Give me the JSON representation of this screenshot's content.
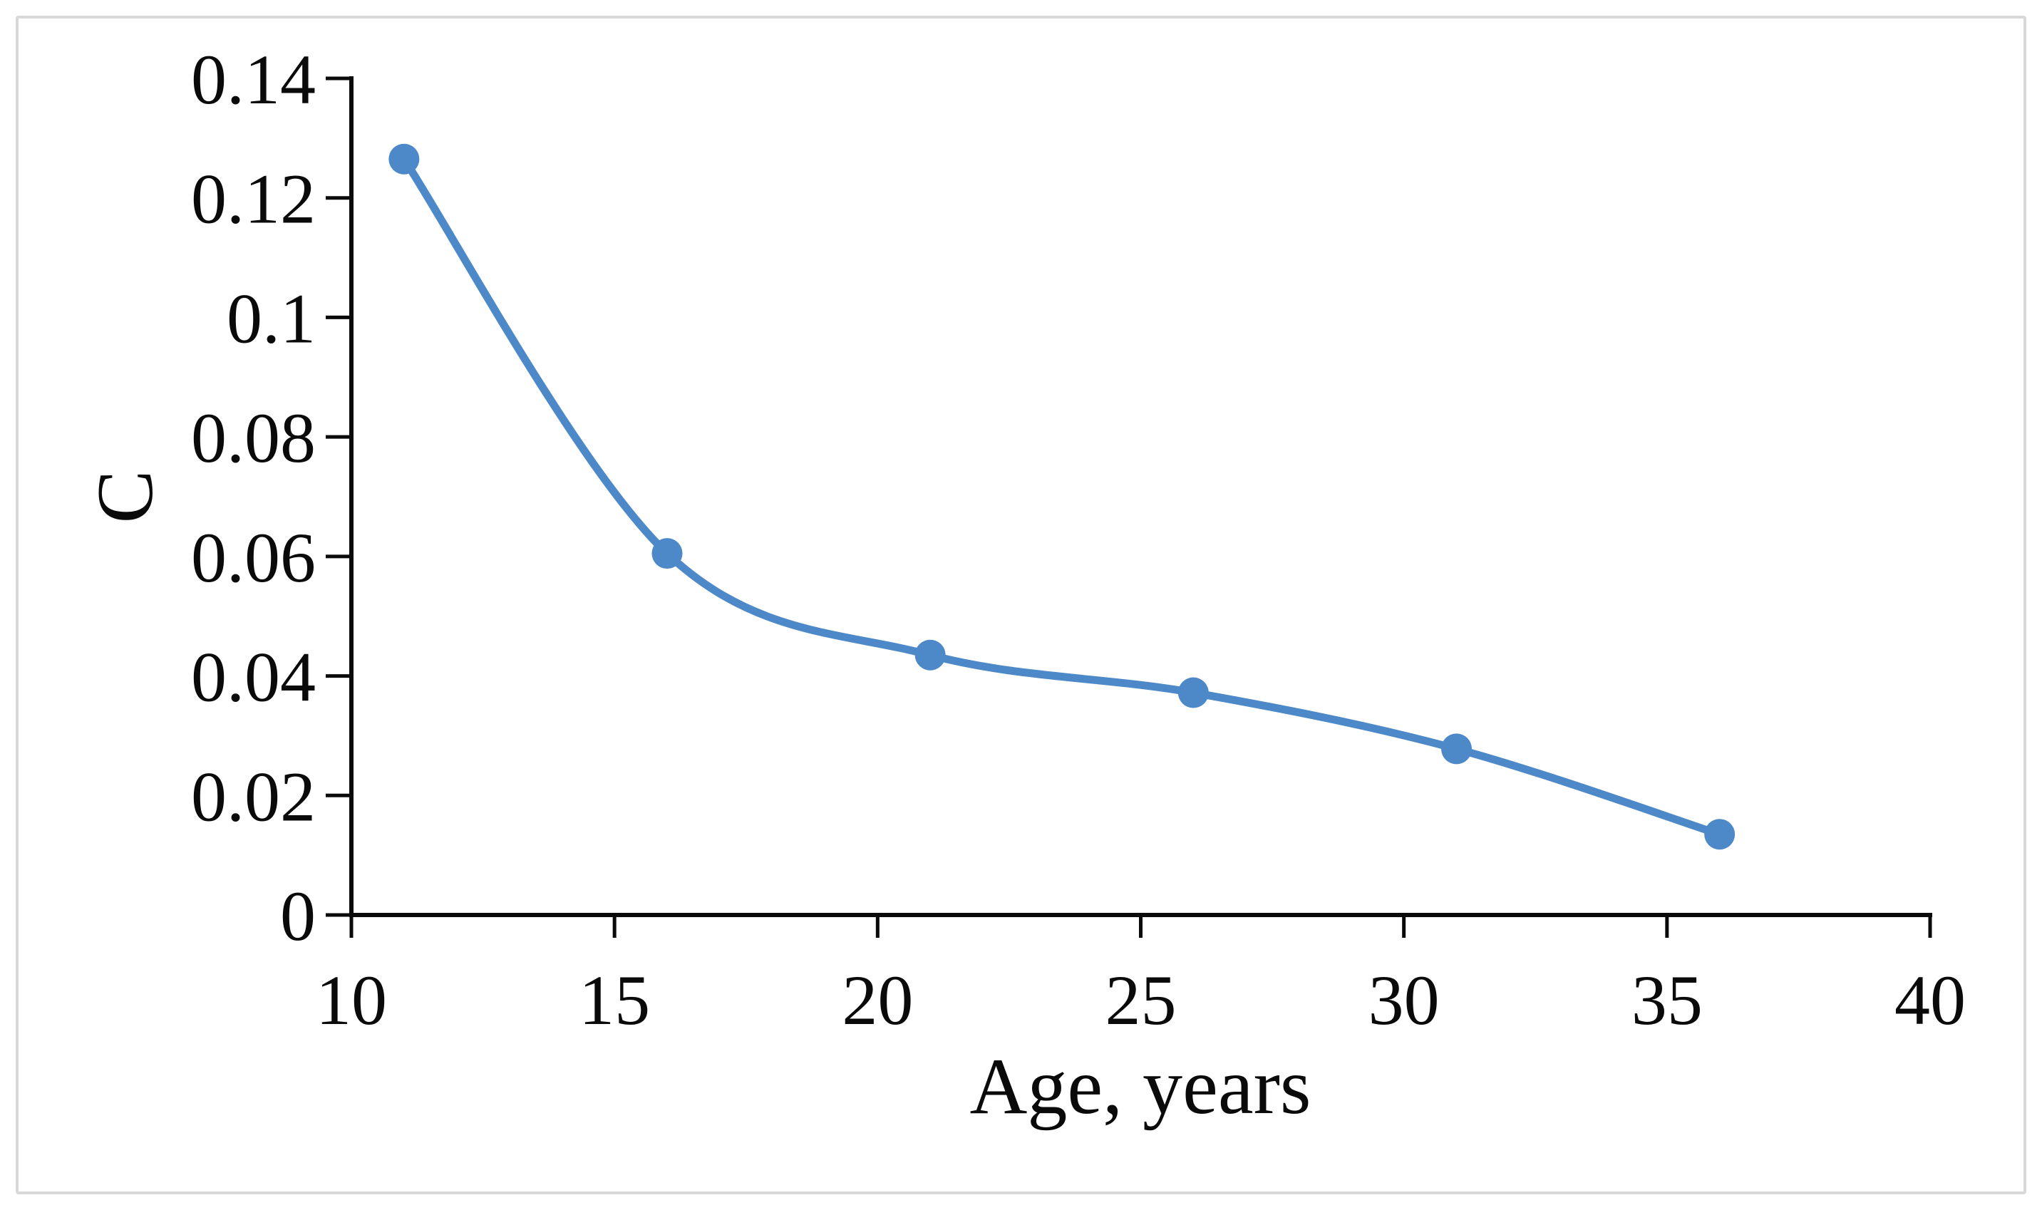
{
  "figure": {
    "background_color": "#ffffff",
    "border_color": "#d8d8d8"
  },
  "chart_data": {
    "type": "line",
    "title": "",
    "xlabel": "Age, years",
    "ylabel": "C",
    "x": [
      11,
      16,
      21,
      26,
      31,
      36
    ],
    "y": [
      0.1265,
      0.0605,
      0.0435,
      0.0372,
      0.0278,
      0.0135
    ],
    "series": [
      {
        "name": "C",
        "x": [
          11,
          16,
          21,
          26,
          31,
          36
        ],
        "values": [
          0.1265,
          0.0605,
          0.0435,
          0.0372,
          0.0278,
          0.0135
        ]
      }
    ],
    "xlim": [
      10,
      40
    ],
    "ylim": [
      0,
      0.14
    ],
    "x_ticks": [
      10,
      15,
      20,
      25,
      30,
      35,
      40
    ],
    "x_tick_labels": [
      "10",
      "15",
      "20",
      "25",
      "30",
      "35",
      "40"
    ],
    "y_ticks": [
      0,
      0.02,
      0.04,
      0.06,
      0.08,
      0.1,
      0.12,
      0.14
    ],
    "y_tick_labels": [
      "0",
      "0.02",
      "0.04",
      "0.06",
      "0.08",
      "0.1",
      "0.12",
      "0.14"
    ],
    "grid": false,
    "legend": "none",
    "smooth_line": true,
    "marker": "circle",
    "line_color": "#4d89c8",
    "marker_color": "#4d89c8",
    "axis_color": "#0a0a0a",
    "text_color": "#0a0a0a"
  }
}
